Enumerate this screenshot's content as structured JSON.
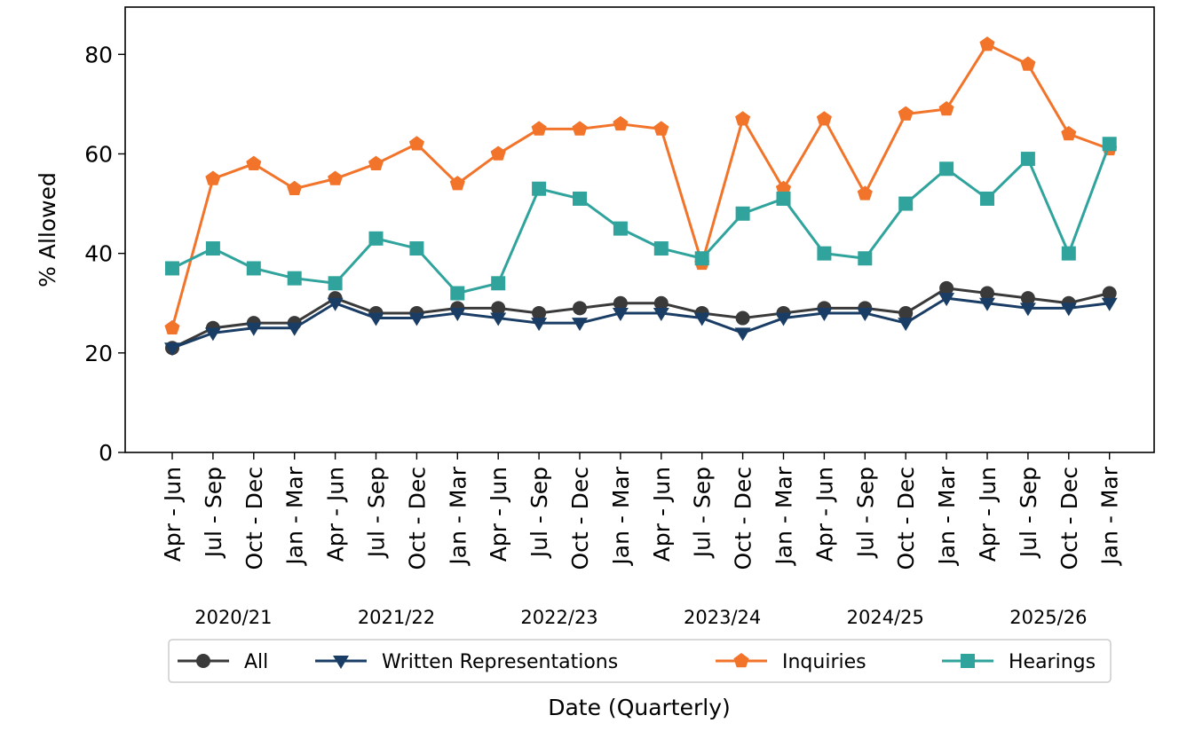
{
  "chart_data": {
    "type": "line",
    "xlabel": "Date (Quarterly)",
    "ylabel": "% Allowed",
    "ylim": [
      0,
      89.5
    ],
    "yticks": [
      0,
      20,
      40,
      60,
      80
    ],
    "categories": [
      "Apr - Jun",
      "Jul - Sep",
      "Oct - Dec",
      "Jan - Mar",
      "Apr - Jun",
      "Jul - Sep",
      "Oct - Dec",
      "Jan - Mar",
      "Apr - Jun",
      "Jul - Sep",
      "Oct - Dec",
      "Jan - Mar",
      "Apr - Jun",
      "Jul - Sep",
      "Oct - Dec",
      "Jan - Mar",
      "Apr - Jun",
      "Jul - Sep",
      "Oct - Dec",
      "Jan - Mar",
      "Apr - Jun",
      "Jul - Sep",
      "Oct - Dec",
      "Jan - Mar"
    ],
    "year_groups": [
      "2020/21",
      "2021/22",
      "2022/23",
      "2023/24",
      "2024/25",
      "2025/26"
    ],
    "legend_position": "bottom",
    "grid": false,
    "series": [
      {
        "name": "All",
        "color": "#3a3a3a",
        "marker": "circle",
        "values": [
          21,
          25,
          26,
          26,
          31,
          28,
          28,
          29,
          29,
          28,
          29,
          30,
          30,
          28,
          27,
          28,
          29,
          29,
          28,
          33,
          32,
          31,
          30,
          32
        ]
      },
      {
        "name": "Written Representations",
        "color": "#1a3d66",
        "marker": "triangle-down",
        "values": [
          21,
          24,
          25,
          25,
          30,
          27,
          27,
          28,
          27,
          26,
          26,
          28,
          28,
          27,
          24,
          27,
          28,
          28,
          26,
          31,
          30,
          29,
          29,
          30
        ]
      },
      {
        "name": "Inquiries",
        "color": "#f2742b",
        "marker": "pentagon",
        "values": [
          25,
          55,
          58,
          53,
          55,
          58,
          62,
          54,
          60,
          65,
          65,
          66,
          65,
          38,
          67,
          53,
          67,
          52,
          68,
          69,
          82,
          78,
          64,
          61
        ]
      },
      {
        "name": "Hearings",
        "color": "#2fa39c",
        "marker": "square",
        "values": [
          37,
          41,
          37,
          35,
          34,
          43,
          41,
          32,
          34,
          53,
          51,
          45,
          41,
          39,
          48,
          51,
          40,
          39,
          50,
          57,
          51,
          59,
          40,
          62
        ]
      }
    ]
  }
}
